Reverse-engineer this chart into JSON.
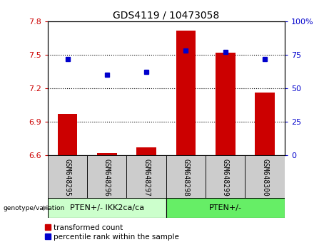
{
  "title": "GDS4119 / 10473058",
  "samples": [
    "GSM648295",
    "GSM648296",
    "GSM648297",
    "GSM648298",
    "GSM648299",
    "GSM648300"
  ],
  "red_values": [
    6.97,
    6.62,
    6.67,
    7.72,
    7.52,
    7.16
  ],
  "blue_values": [
    72,
    60,
    62,
    78,
    77,
    72
  ],
  "ylim_left": [
    6.6,
    7.8
  ],
  "ylim_right": [
    0,
    100
  ],
  "yticks_left": [
    6.6,
    6.9,
    7.2,
    7.5,
    7.8
  ],
  "yticks_right": [
    0,
    25,
    50,
    75,
    100
  ],
  "hlines": [
    6.9,
    7.2,
    7.5
  ],
  "group1_label": "PTEN+/- IKK2ca/ca",
  "group2_label": "PTEN+/-",
  "legend_red": "transformed count",
  "legend_blue": "percentile rank within the sample",
  "genotype_label": "genotype/variation",
  "bar_color": "#cc0000",
  "dot_color": "#0000cc",
  "group1_bg": "#ccffcc",
  "group2_bg": "#66ee66",
  "xticklabel_area_bg": "#cccccc",
  "bar_width": 0.5,
  "title_fontsize": 10,
  "tick_fontsize": 8,
  "label_fontsize": 8,
  "legend_fontsize": 7.5
}
